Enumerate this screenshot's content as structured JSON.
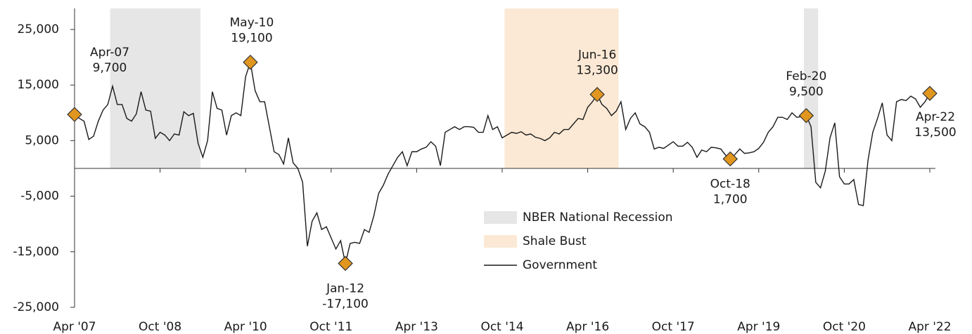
{
  "chart_data": {
    "type": "line",
    "x": [
      "2007-04",
      "2007-05",
      "2007-06",
      "2007-07",
      "2007-08",
      "2007-09",
      "2007-10",
      "2007-11",
      "2007-12",
      "2008-01",
      "2008-02",
      "2008-03",
      "2008-04",
      "2008-05",
      "2008-06",
      "2008-07",
      "2008-08",
      "2008-09",
      "2008-10",
      "2008-11",
      "2008-12",
      "2009-01",
      "2009-02",
      "2009-03",
      "2009-04",
      "2009-05",
      "2009-06",
      "2009-07",
      "2009-08",
      "2009-09",
      "2009-10",
      "2009-11",
      "2009-12",
      "2010-01",
      "2010-02",
      "2010-03",
      "2010-04",
      "2010-05",
      "2010-06",
      "2010-07",
      "2010-08",
      "2010-09",
      "2010-10",
      "2010-11",
      "2010-12",
      "2011-01",
      "2011-02",
      "2011-03",
      "2011-04",
      "2011-05",
      "2011-06",
      "2011-07",
      "2011-08",
      "2011-09",
      "2011-10",
      "2011-11",
      "2011-12",
      "2012-01",
      "2012-02",
      "2012-03",
      "2012-04",
      "2012-05",
      "2012-06",
      "2012-07",
      "2012-08",
      "2012-09",
      "2012-10",
      "2012-11",
      "2012-12",
      "2013-01",
      "2013-02",
      "2013-03",
      "2013-04",
      "2013-05",
      "2013-06",
      "2013-07",
      "2013-08",
      "2013-09",
      "2013-10",
      "2013-11",
      "2013-12",
      "2014-01",
      "2014-02",
      "2014-03",
      "2014-04",
      "2014-05",
      "2014-06",
      "2014-07",
      "2014-08",
      "2014-09",
      "2014-10",
      "2014-11",
      "2014-12",
      "2015-01",
      "2015-02",
      "2015-03",
      "2015-04",
      "2015-05",
      "2015-06",
      "2015-07",
      "2015-08",
      "2015-09",
      "2015-10",
      "2015-11",
      "2015-12",
      "2016-01",
      "2016-02",
      "2016-03",
      "2016-04",
      "2016-05",
      "2016-06",
      "2016-07",
      "2016-08",
      "2016-09",
      "2016-10",
      "2016-11",
      "2016-12",
      "2017-01",
      "2017-02",
      "2017-03",
      "2017-04",
      "2017-05",
      "2017-06",
      "2017-07",
      "2017-08",
      "2017-09",
      "2017-10",
      "2017-11",
      "2017-12",
      "2018-01",
      "2018-02",
      "2018-03",
      "2018-04",
      "2018-05",
      "2018-06",
      "2018-07",
      "2018-08",
      "2018-09",
      "2018-10",
      "2018-11",
      "2018-12",
      "2019-01",
      "2019-02",
      "2019-03",
      "2019-04",
      "2019-05",
      "2019-06",
      "2019-07",
      "2019-08",
      "2019-09",
      "2019-10",
      "2019-11",
      "2019-12",
      "2020-01",
      "2020-02",
      "2020-03",
      "2020-04",
      "2020-05",
      "2020-06",
      "2020-07",
      "2020-08",
      "2020-09",
      "2020-10",
      "2020-11",
      "2020-12",
      "2021-01",
      "2021-02",
      "2021-03",
      "2021-04",
      "2021-05",
      "2021-06",
      "2021-07",
      "2021-08",
      "2021-09",
      "2021-10",
      "2021-11",
      "2021-12",
      "2022-01",
      "2022-02",
      "2022-03",
      "2022-04"
    ],
    "series": [
      {
        "name": "Government",
        "color": "#1a1a1a",
        "values": [
          9700,
          9000,
          8500,
          5200,
          5800,
          8500,
          10500,
          11500,
          14800,
          11500,
          11500,
          9000,
          8500,
          9800,
          13800,
          10500,
          10300,
          5400,
          6500,
          6000,
          5000,
          6200,
          6000,
          10200,
          9500,
          9900,
          4500,
          2000,
          5000,
          13800,
          10800,
          10500,
          6000,
          9500,
          10000,
          9500,
          16500,
          19100,
          14000,
          12000,
          12000,
          7500,
          3000,
          2500,
          800,
          5500,
          1000,
          0,
          -2500,
          -14000,
          -9500,
          -8000,
          -11000,
          -10500,
          -12500,
          -14500,
          -13000,
          -17100,
          -13500,
          -13300,
          -13500,
          -11000,
          -11500,
          -8500,
          -4500,
          -3000,
          -1000,
          500,
          2000,
          3000,
          500,
          3000,
          3000,
          3500,
          3800,
          4800,
          4000,
          500,
          6500,
          7000,
          7500,
          7000,
          7500,
          7500,
          7400,
          6500,
          6500,
          9500,
          7000,
          7500,
          5500,
          6000,
          6500,
          6300,
          6600,
          6000,
          6200,
          5600,
          5400,
          5000,
          5500,
          6500,
          6200,
          7000,
          7000,
          8000,
          9000,
          8800,
          11000,
          12000,
          13300,
          11500,
          10800,
          9500,
          10300,
          12000,
          7000,
          9000,
          10000,
          8000,
          7500,
          6500,
          3500,
          3800,
          3600,
          4200,
          4800,
          4000,
          4000,
          4700,
          3800,
          2000,
          3300,
          3000,
          3800,
          3700,
          3500,
          2400,
          1700,
          2500,
          3500,
          2700,
          2800,
          3000,
          3600,
          4700,
          6500,
          7500,
          9200,
          9200,
          8800,
          10000,
          9200,
          9300,
          9500,
          7500,
          -2500,
          -3500,
          -500,
          5500,
          8200,
          -1500,
          -2800,
          -2800,
          -2000,
          -6500,
          -6700,
          1500,
          6500,
          9000,
          11800,
          6000,
          5000,
          12000,
          12400,
          12200,
          13000,
          12500,
          11000,
          12000,
          13500
        ]
      }
    ],
    "xlim": [
      "2007-04",
      "2022-04"
    ],
    "xticks": [
      {
        "value": "2007-04",
        "label": "Apr '07"
      },
      {
        "value": "2008-10",
        "label": "Oct '08"
      },
      {
        "value": "2010-04",
        "label": "Apr '10"
      },
      {
        "value": "2011-10",
        "label": "Oct '11"
      },
      {
        "value": "2013-04",
        "label": "Apr '13"
      },
      {
        "value": "2014-10",
        "label": "Oct '14"
      },
      {
        "value": "2016-04",
        "label": "Apr '16"
      },
      {
        "value": "2017-10",
        "label": "Oct '17"
      },
      {
        "value": "2019-04",
        "label": "Apr '19"
      },
      {
        "value": "2020-10",
        "label": "Oct '20"
      },
      {
        "value": "2022-04",
        "label": "Apr '22"
      }
    ],
    "ylim": [
      -25000,
      25000
    ],
    "yticks": [
      {
        "value": -25000,
        "label": "-25,000"
      },
      {
        "value": -15000,
        "label": "-15,000"
      },
      {
        "value": -5000,
        "label": "-5,000"
      },
      {
        "value": 5000,
        "label": "5,000"
      },
      {
        "value": 15000,
        "label": "15,000"
      },
      {
        "value": 25000,
        "label": "25,000"
      }
    ],
    "shaded_periods": [
      {
        "name": "NBER National Recession",
        "color": "#e6e6e6",
        "ranges": [
          [
            "2007-12",
            "2009-06"
          ],
          [
            "2020-02",
            "2020-04"
          ]
        ]
      },
      {
        "name": "Shale Bust",
        "color": "#fbe9d5",
        "ranges": [
          [
            "2014-11",
            "2016-10"
          ]
        ]
      }
    ],
    "annotations": [
      {
        "x": "2007-04",
        "label": "Apr-07",
        "value": 9700,
        "value_label": "9,700"
      },
      {
        "x": "2010-05",
        "label": "May-10",
        "value": 19100,
        "value_label": "19,100"
      },
      {
        "x": "2012-01",
        "label": "Jan-12",
        "value": -17100,
        "value_label": "-17,100"
      },
      {
        "x": "2016-06",
        "label": "Jun-16",
        "value": 13300,
        "value_label": "13,300"
      },
      {
        "x": "2018-10",
        "label": "Oct-18",
        "value": 1700,
        "value_label": "1,700"
      },
      {
        "x": "2020-02",
        "label": "Feb-20",
        "value": 9500,
        "value_label": "9,500"
      },
      {
        "x": "2022-04",
        "label": "Apr-22",
        "value": 13500,
        "value_label": "13,500"
      }
    ],
    "marker_color": "#e0961f"
  }
}
